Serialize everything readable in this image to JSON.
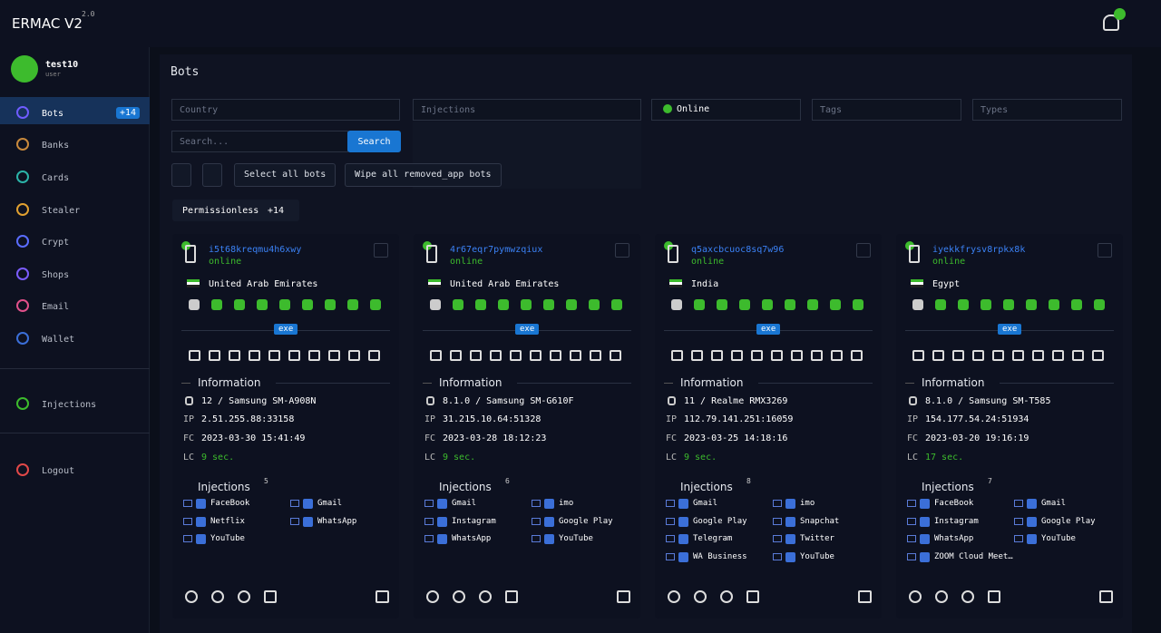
{
  "header": {
    "app_name": "ERMAC V2",
    "version": "2.0"
  },
  "user": {
    "name": "test10",
    "role": "user"
  },
  "sidebar": {
    "items": [
      {
        "label": "Bots",
        "badge": "+14"
      },
      {
        "label": "Banks"
      },
      {
        "label": "Cards"
      },
      {
        "label": "Stealer"
      },
      {
        "label": "Crypt"
      },
      {
        "label": "Shops"
      },
      {
        "label": "Email"
      },
      {
        "label": "Wallet"
      },
      {
        "label": "Injections"
      },
      {
        "label": "Logout"
      }
    ]
  },
  "page": {
    "title": "Bots"
  },
  "filters": {
    "country": "Country",
    "injections": "Injections",
    "online_chip": "Online",
    "tags": "Tags",
    "types": "Types",
    "search_placeholder": "Search...",
    "search_button": "Search",
    "select_all": "Select all bots",
    "wipe": "Wipe all removed_app bots"
  },
  "group": {
    "name": "Permissionless",
    "count": "+14"
  },
  "labels": {
    "exe": "exe",
    "information": "Information",
    "ip": "IP",
    "fc": "FC",
    "lc": "LC",
    "injections": "Injections"
  },
  "bots": [
    {
      "id": "i5t68kreqmu4h6xwy",
      "status": "online",
      "country": "United Arab Emirates",
      "device": "12 / Samsung SM-A908N",
      "ip": "2.51.255.88:33158",
      "fc": "2023-03-30 15:41:49",
      "lc": "9 sec.",
      "injection_count": 5,
      "injections": [
        "FaceBook",
        "Gmail",
        "Netflix",
        "WhatsApp",
        "YouTube"
      ]
    },
    {
      "id": "4r67eqr7pymwzqiux",
      "status": "online",
      "country": "United Arab Emirates",
      "device": "8.1.0 / Samsung SM-G610F",
      "ip": "31.215.10.64:51328",
      "fc": "2023-03-28 18:12:23",
      "lc": "9 sec.",
      "injection_count": 6,
      "injections": [
        "Gmail",
        "imo",
        "Instagram",
        "Google Play",
        "WhatsApp",
        "YouTube"
      ]
    },
    {
      "id": "q5axcbcuoc8sq7w96",
      "status": "online",
      "country": "India",
      "device": "11 / Realme RMX3269",
      "ip": "112.79.141.251:16059",
      "fc": "2023-03-25 14:18:16",
      "lc": "9 sec.",
      "injection_count": 8,
      "injections": [
        "Gmail",
        "imo",
        "Google Play",
        "Snapchat",
        "Telegram",
        "Twitter",
        "WA Business",
        "YouTube"
      ]
    },
    {
      "id": "iyekkfrysv8rpkx8k",
      "status": "online",
      "country": "Egypt",
      "device": "8.1.0 / Samsung SM-T585",
      "ip": "154.177.54.24:51934",
      "fc": "2023-03-20 19:16:19",
      "lc": "17 sec.",
      "injection_count": 7,
      "injections": [
        "FaceBook",
        "Gmail",
        "Instagram",
        "Google Play",
        "WhatsApp",
        "YouTube",
        "ZOOM Cloud Meet…"
      ]
    }
  ]
}
